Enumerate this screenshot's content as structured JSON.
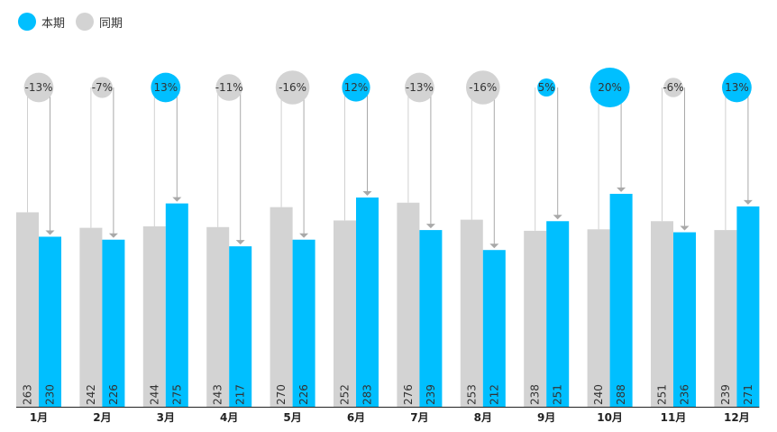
{
  "legend": {
    "current_label": "本期",
    "previous_label": "同期"
  },
  "colors": {
    "current": "#00BFFF",
    "previous": "#D3D3D3",
    "arrow": "#A9A9A9",
    "connector": "#D0D0D0"
  },
  "chart_data": {
    "type": "bar",
    "categories": [
      "1月",
      "2月",
      "3月",
      "4月",
      "5月",
      "6月",
      "7月",
      "8月",
      "9月",
      "10月",
      "11月",
      "12月"
    ],
    "series": [
      {
        "name": "同期",
        "values": [
          263,
          242,
          244,
          243,
          270,
          252,
          276,
          253,
          238,
          240,
          251,
          239
        ]
      },
      {
        "name": "本期",
        "values": [
          230,
          226,
          275,
          217,
          226,
          283,
          239,
          212,
          251,
          288,
          236,
          271
        ]
      }
    ],
    "growth": [
      "-13%",
      "-7%",
      "13%",
      "-11%",
      "-16%",
      "12%",
      "-13%",
      "-16%",
      "5%",
      "20%",
      "-6%",
      "13%"
    ],
    "growth_values": [
      -13,
      -7,
      13,
      -11,
      -16,
      12,
      -13,
      -16,
      5,
      20,
      -6,
      13
    ],
    "ylim": [
      0,
      300
    ],
    "legend_position": "top-left",
    "grid": false
  }
}
